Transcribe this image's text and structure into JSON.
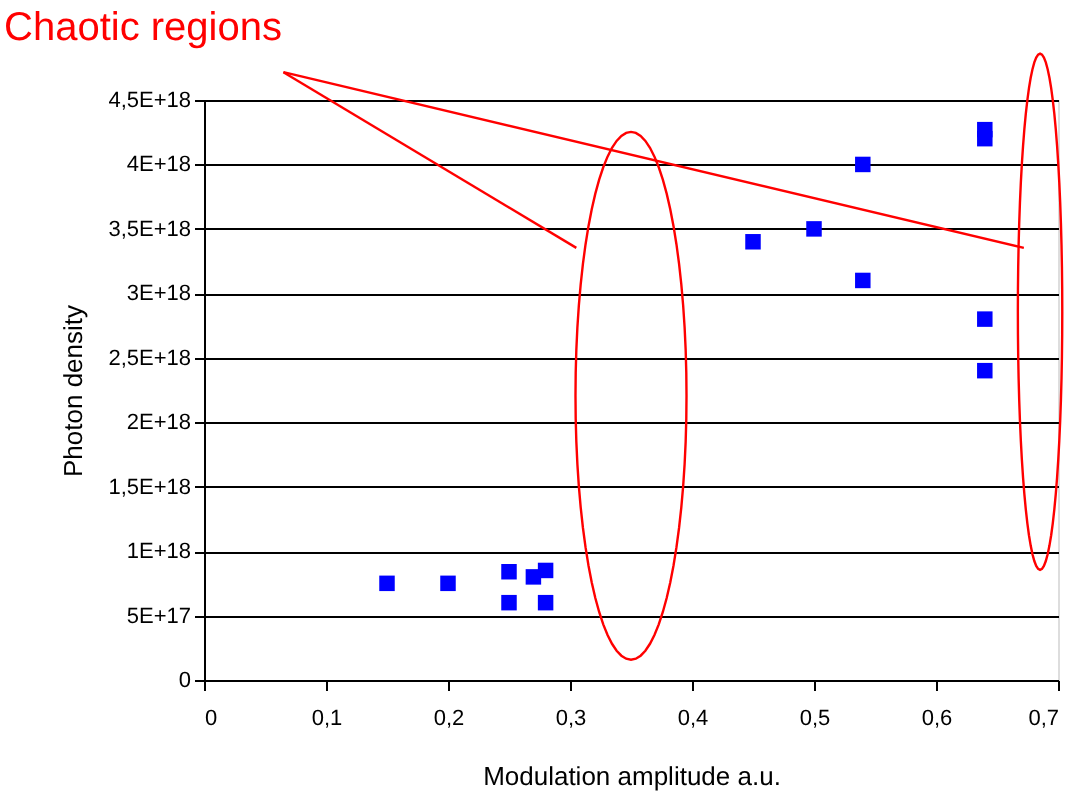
{
  "chart_data": {
    "type": "scatter",
    "xlabel": "Modulation amplitude a.u.",
    "ylabel": "Photon density",
    "annotations": [
      "Chaotic regions"
    ],
    "series": [
      {
        "color": "#0000ff",
        "x": [
          0.15,
          0.2,
          0.25,
          0.25,
          0.27,
          0.28,
          0.28,
          0.45,
          0.5,
          0.54,
          0.54,
          0.64,
          0.64,
          0.64,
          0.64
        ],
        "values": [
          7.5e+17,
          7.5e+17,
          8.4e+17,
          6e+17,
          8e+17,
          8.5e+17,
          6e+17,
          3.4e+18,
          3.5e+18,
          4e+18,
          3.1e+18,
          4.27e+18,
          4.2e+18,
          2.8e+18,
          2.4e+18
        ]
      }
    ],
    "marker": "square",
    "grid": "y",
    "xlim": [
      0,
      0.7
    ],
    "ylim": [
      0,
      4.5e+18
    ],
    "xticks": [
      0,
      {
        "value": 0.1,
        "label": "0,1"
      },
      {
        "value": 0.2,
        "label": "0,2"
      },
      {
        "value": 0.3,
        "label": "0,3"
      },
      {
        "value": 0.4,
        "label": "0,4"
      },
      {
        "value": 0.5,
        "label": "0,5"
      },
      {
        "value": 0.6,
        "label": "0,6"
      },
      {
        "value": 0.7,
        "label": "0,7"
      }
    ],
    "yticks": [
      0,
      {
        "value": 5e+17,
        "label": "5E+17"
      },
      {
        "value": 1e+18,
        "label": "1E+18"
      },
      {
        "value": 1.5e+18,
        "label": "1,5E+18"
      },
      {
        "value": 2e+18,
        "label": "2E+18"
      },
      {
        "value": 2.5e+18,
        "label": "2,5E+18"
      },
      {
        "value": 3e+18,
        "label": "3E+18"
      },
      {
        "value": 3.5e+18,
        "label": "3,5E+18"
      },
      {
        "value": 4e+18,
        "label": "4E+18"
      },
      {
        "value": 4.5e+18,
        "label": "4,5E+18"
      }
    ]
  }
}
